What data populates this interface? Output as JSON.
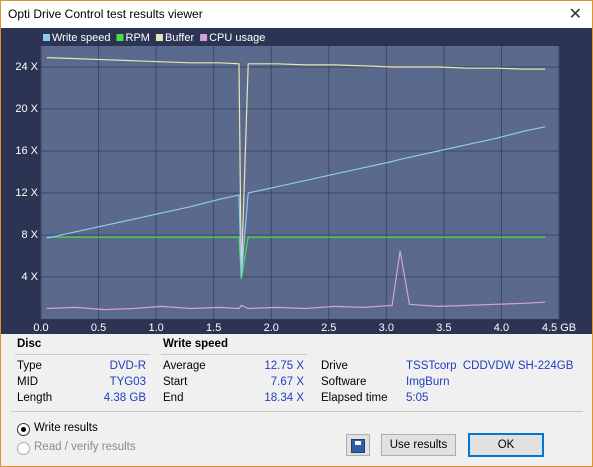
{
  "window": {
    "title": "Opti Drive Control test results viewer"
  },
  "chart_data": {
    "type": "line",
    "x": [
      0.05,
      0.3,
      0.55,
      0.8,
      1.05,
      1.3,
      1.55,
      1.72,
      1.74,
      1.8,
      2.05,
      2.3,
      2.55,
      2.8,
      3.05,
      3.12,
      3.2,
      3.45,
      3.7,
      3.95,
      4.2,
      4.38
    ],
    "series": [
      {
        "name": "Write speed",
        "color": "#8fc8f5",
        "values": [
          7.7,
          8.3,
          8.9,
          9.5,
          10.1,
          10.7,
          11.4,
          11.8,
          4.0,
          12.0,
          12.6,
          13.2,
          13.8,
          14.4,
          15.0,
          15.2,
          15.4,
          16.0,
          16.6,
          17.2,
          17.9,
          18.3
        ]
      },
      {
        "name": "RPM",
        "color": "#44e044",
        "values": [
          7.8,
          7.8,
          7.8,
          7.8,
          7.8,
          7.8,
          7.8,
          7.8,
          3.8,
          7.8,
          7.8,
          7.8,
          7.8,
          7.8,
          7.8,
          7.8,
          7.8,
          7.8,
          7.8,
          7.8,
          7.8,
          7.8
        ]
      },
      {
        "name": "Buffer",
        "color": "#e8e6b0",
        "values": [
          24.9,
          24.8,
          24.7,
          24.6,
          24.5,
          24.4,
          24.4,
          24.3,
          4.0,
          24.3,
          24.3,
          24.2,
          24.2,
          24.1,
          24.0,
          24.0,
          24.0,
          24.0,
          23.9,
          23.9,
          23.8,
          23.8
        ]
      },
      {
        "name": "CPU usage",
        "color": "#d8a0d8",
        "values": [
          1.0,
          1.1,
          0.9,
          1.0,
          1.2,
          1.0,
          1.1,
          1.0,
          1.3,
          1.0,
          1.1,
          1.0,
          1.2,
          1.1,
          1.3,
          6.5,
          1.4,
          1.2,
          1.3,
          1.4,
          1.5,
          1.6
        ]
      }
    ],
    "xlim": [
      0,
      4.5
    ],
    "xticks": [
      {
        "value": 0,
        "label": "0.0"
      },
      {
        "value": 0.5,
        "label": "0.5"
      },
      {
        "value": 1,
        "label": "1.0"
      },
      {
        "value": 1.5,
        "label": "1.5"
      },
      {
        "value": 2,
        "label": "2.0"
      },
      {
        "value": 2.5,
        "label": "2.5"
      },
      {
        "value": 3,
        "label": "3.0"
      },
      {
        "value": 3.5,
        "label": "3.5"
      },
      {
        "value": 4,
        "label": "4.0"
      },
      {
        "value": 4.5,
        "label": "4.5 GB"
      }
    ],
    "ylim": [
      0,
      26
    ],
    "yticks": [
      {
        "value": 4,
        "label": "4 X"
      },
      {
        "value": 8,
        "label": "8 X"
      },
      {
        "value": 12,
        "label": "12 X"
      },
      {
        "value": 16,
        "label": "16 X"
      },
      {
        "value": 20,
        "label": "20 X"
      },
      {
        "value": 24,
        "label": "24 X"
      }
    ],
    "grid": true
  },
  "disc": {
    "heading": "Disc",
    "rows": [
      {
        "label": "Type",
        "value": "DVD-R"
      },
      {
        "label": "MID",
        "value": "TYG03"
      },
      {
        "label": "Length",
        "value": "4.38 GB"
      }
    ]
  },
  "write_speed": {
    "heading": "Write speed",
    "rows": [
      {
        "label": "Average",
        "value": "12.75 X"
      },
      {
        "label": "Start",
        "value": "7.67 X"
      },
      {
        "label": "End",
        "value": "18.34 X"
      }
    ]
  },
  "info": {
    "rows": [
      {
        "label": "Drive",
        "value": "TSSTcorp  CDDVDW SH-224GB"
      },
      {
        "label": "Software",
        "value": "ImgBurn"
      },
      {
        "label": "Elapsed time",
        "value": "5:05"
      }
    ]
  },
  "options": [
    "Write results",
    "Read / verify results"
  ],
  "buttons": [
    "Use results",
    "OK"
  ]
}
